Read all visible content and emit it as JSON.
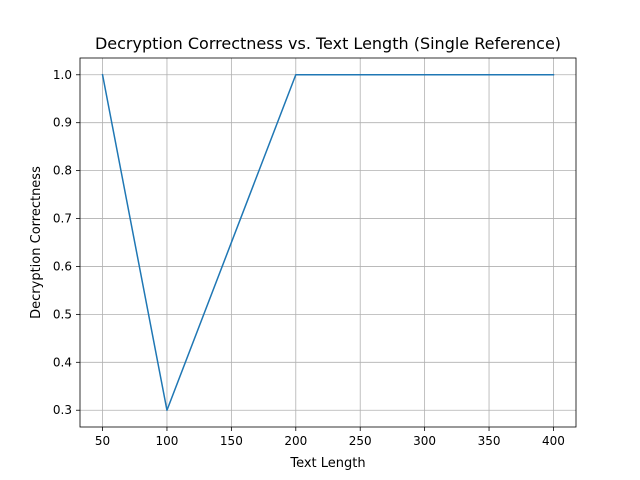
{
  "chart_data": {
    "type": "line",
    "title": "Decryption Correctness vs. Text Length (Single Reference)",
    "xlabel": "Text Length",
    "ylabel": "Decryption Correctness",
    "x": [
      50,
      100,
      200,
      300,
      400
    ],
    "series": [
      {
        "values": [
          1.0,
          0.3,
          1.0,
          1.0,
          1.0
        ],
        "color": "#1f77b4"
      }
    ],
    "xlim": [
      32.5,
      417.5
    ],
    "ylim": [
      0.265,
      1.035
    ],
    "xticks": [
      50,
      100,
      150,
      200,
      250,
      300,
      350,
      400
    ],
    "xtick_labels": [
      "50",
      "100",
      "150",
      "200",
      "250",
      "300",
      "350",
      "400"
    ],
    "yticks": [
      0.3,
      0.4,
      0.5,
      0.6,
      0.7,
      0.8,
      0.9,
      1.0
    ],
    "ytick_labels": [
      "0.3",
      "0.4",
      "0.5",
      "0.6",
      "0.7",
      "0.8",
      "0.9",
      "1.0"
    ],
    "grid": true,
    "legend": "none"
  }
}
